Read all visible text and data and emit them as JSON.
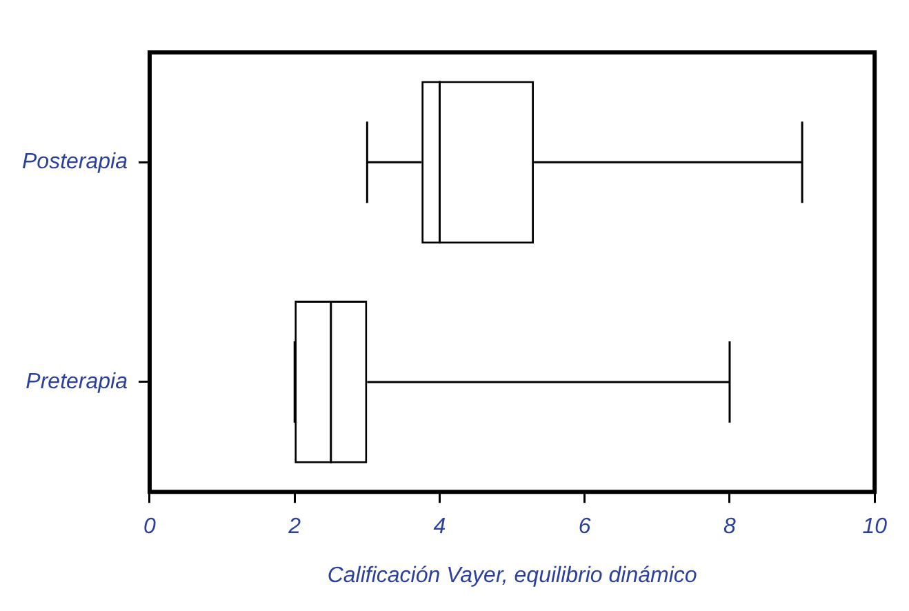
{
  "chart_data": {
    "type": "box",
    "orientation": "horizontal",
    "xlabel": "Calificación Vayer, equilibrio dinámico",
    "categories": [
      "Posterapia",
      "Preterapia"
    ],
    "boxes": [
      {
        "low": 3,
        "q1": 3.75,
        "median": 4,
        "q3": 5.3,
        "high": 9
      },
      {
        "low": 2,
        "q1": 2,
        "median": 2.5,
        "q3": 3,
        "high": 8
      }
    ],
    "xlim": [
      0,
      10
    ],
    "xticks": [
      0,
      2,
      4,
      6,
      8,
      10
    ]
  }
}
